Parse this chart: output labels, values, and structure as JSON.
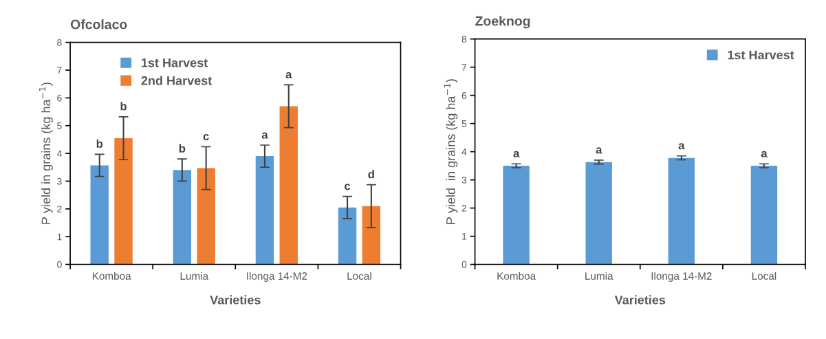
{
  "chart_data": [
    {
      "type": "bar",
      "title": "Ofcolaco",
      "xlabel": "Varieties",
      "ylabel": "P yield in grains (kg ha$^{−1}$)",
      "categories": [
        "Komboa",
        "Lumia",
        "Ilonga 14-M2",
        "Local"
      ],
      "series": [
        {
          "name": "1st Harvest",
          "color": "#5b9bd5",
          "values": [
            3.57,
            3.4,
            3.9,
            2.05
          ],
          "errors": [
            0.4,
            0.4,
            0.4,
            0.4
          ],
          "value_labels": [
            "b",
            "b",
            "a",
            "c"
          ]
        },
        {
          "name": "2nd Harvest",
          "color": "#ed7d31",
          "values": [
            4.55,
            3.47,
            5.7,
            2.1
          ],
          "errors": [
            0.77,
            0.77,
            0.77,
            0.77
          ],
          "value_labels": [
            "b",
            "c",
            "a",
            "d"
          ]
        }
      ],
      "ylim": [
        0,
        8
      ],
      "yticks": [
        0,
        1,
        2,
        3,
        4,
        5,
        6,
        7,
        8
      ],
      "grid": false,
      "legend": "top left"
    },
    {
      "type": "bar",
      "title": "Zoeknog",
      "xlabel": "Varieties",
      "ylabel": "P yield  in grains (kg ha$^{−1}$)",
      "categories": [
        "Komboa",
        "Lumia",
        "Ilonga 14-M2",
        "Local"
      ],
      "series": [
        {
          "name": "1st Harvest",
          "color": "#5b9bd5",
          "values": [
            3.5,
            3.63,
            3.78,
            3.5
          ],
          "errors": [
            0.07,
            0.07,
            0.07,
            0.07
          ],
          "value_labels": [
            "a",
            "a",
            "a",
            "a"
          ]
        }
      ],
      "ylim": [
        0,
        8
      ],
      "yticks": [
        0,
        1,
        2,
        3,
        4,
        5,
        6,
        7,
        8
      ],
      "grid": false,
      "legend": "top right"
    }
  ]
}
